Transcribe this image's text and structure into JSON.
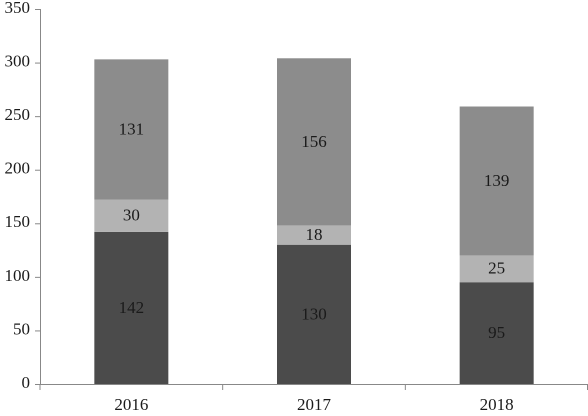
{
  "chart_data": {
    "type": "stacked_bar",
    "categories": [
      "2016",
      "2017",
      "2018"
    ],
    "series": [
      {
        "color": "#4b4b4b",
        "values": [
          142,
          130,
          95
        ]
      },
      {
        "color": "#b3b3b3",
        "values": [
          30,
          18,
          25
        ]
      },
      {
        "color": "#8c8c8c",
        "values": [
          131,
          156,
          139
        ]
      }
    ],
    "ylim": [
      0,
      350
    ],
    "yticks": [
      0,
      50,
      100,
      150,
      200,
      250,
      300,
      350
    ],
    "grid": false
  }
}
